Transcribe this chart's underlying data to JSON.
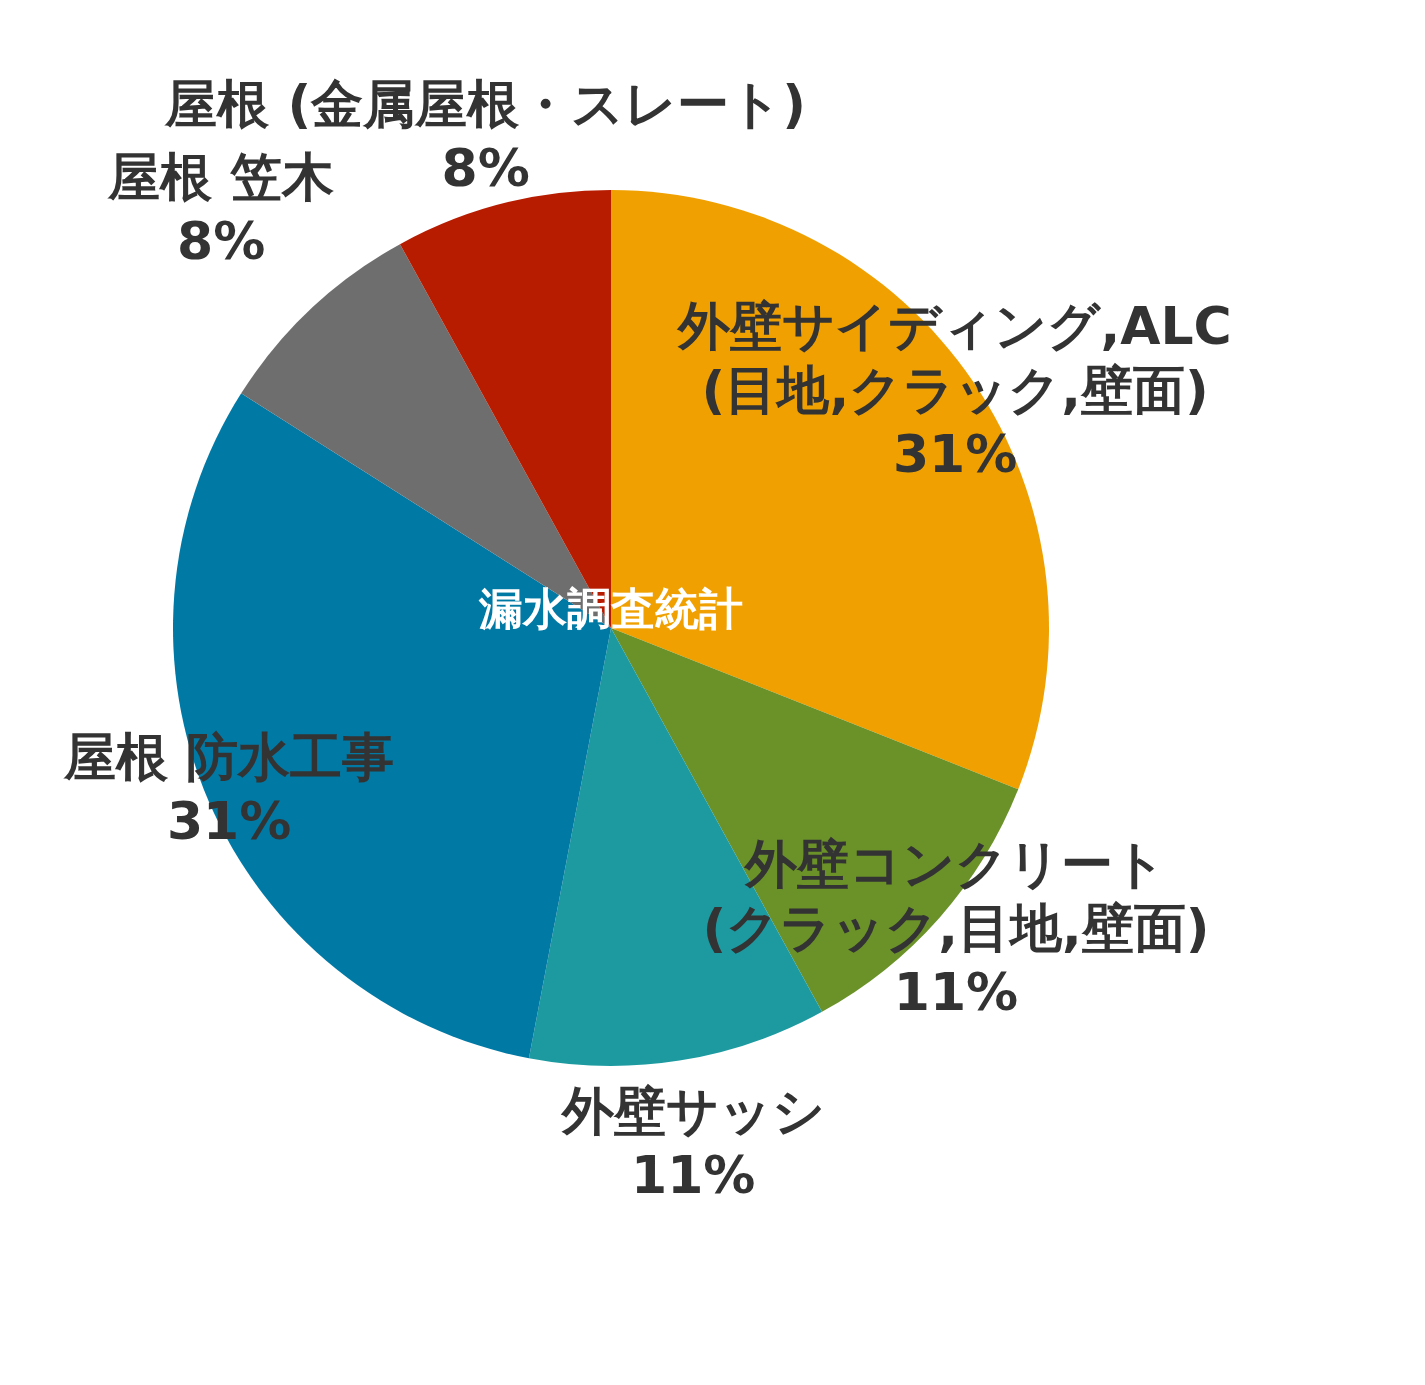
{
  "chart_data": {
    "type": "pie",
    "categories": [
      "外壁サイディング,ALC(目地,クラック,壁面)",
      "外壁コンクリート(クラック,目地,壁面)",
      "外壁サッシ",
      "屋根  防水工事",
      "屋根  笠木",
      "屋根 (金属屋根・スレート)"
    ],
    "values": [
      31,
      11,
      11,
      31,
      8,
      8
    ],
    "colors": [
      "#f0a000",
      "#6b9129",
      "#1c9aa0",
      "#0079a5",
      "#6e6e6e",
      "#b71c00"
    ],
    "value_labels": [
      "31%",
      "11%",
      "11%",
      "31%",
      "8%",
      "8%"
    ],
    "annotations": [
      "漏水調査統計"
    ]
  }
}
